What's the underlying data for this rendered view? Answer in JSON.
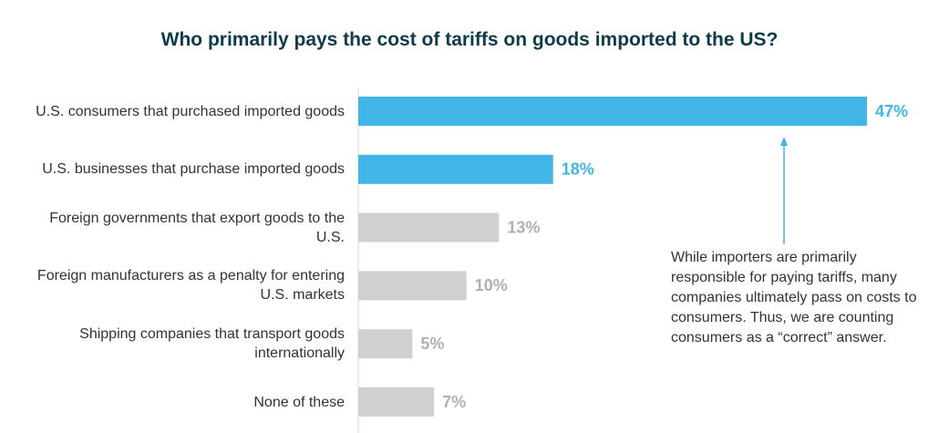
{
  "chart_data": {
    "type": "bar",
    "orientation": "horizontal",
    "title": "Who primarily pays the cost of tariffs on goods imported to the US?",
    "categories": [
      "U.S. consumers that purchased imported goods",
      "U.S. businesses that purchase imported goods",
      "Foreign governments that export goods to the U.S.",
      "Foreign manufacturers as a penalty for entering U.S. markets",
      "Shipping companies that transport goods internationally",
      "None of these"
    ],
    "values": [
      47,
      18,
      13,
      10,
      5,
      7
    ],
    "value_labels": [
      "47%",
      "18%",
      "13%",
      "10%",
      "5%",
      "7%"
    ],
    "colors": [
      "#41b6e6",
      "#41b6e6",
      "#d0d0ce",
      "#d0d0ce",
      "#d0d0ce",
      "#d0d0ce"
    ],
    "label_colors": [
      "#41b6e6",
      "#41b6e6",
      "#b0b0ae",
      "#b0b0ae",
      "#b0b0ae",
      "#b0b0ae"
    ],
    "annotation": "While importers are primarily responsible for paying tariffs, many companies ultimately pass on costs to consumers. Thus, we are counting consumers as a “correct” answer."
  }
}
